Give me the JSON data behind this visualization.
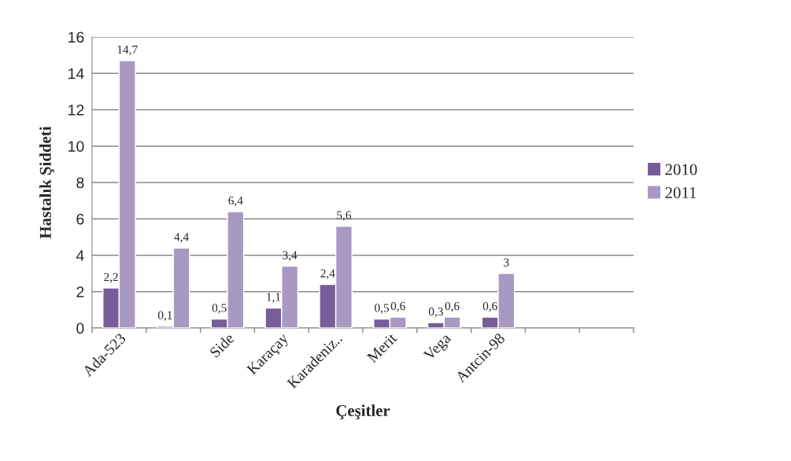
{
  "chart_data": {
    "type": "bar",
    "xlabel": "Çeşitler",
    "ylabel": "Hastalık Şiddeti",
    "categories": [
      "Ada-523",
      null,
      "Side",
      "Karaçay",
      "Karadeniz..",
      "Merit",
      "Vega",
      "Antcin-98",
      null,
      null
    ],
    "series": [
      {
        "name": "2010",
        "color": "#775d99",
        "values": [
          2.2,
          0.1,
          0.5,
          1.1,
          2.4,
          0.5,
          0.3,
          0.6,
          null,
          null
        ],
        "value_labels": [
          "2,2",
          "0,1",
          "0,5",
          "1,1",
          "2,4",
          "0,5",
          "0,3",
          "0,6",
          null,
          null
        ]
      },
      {
        "name": "2011",
        "color": "#a899c3",
        "values": [
          14.7,
          4.4,
          6.4,
          3.4,
          5.6,
          0.6,
          0.6,
          3,
          null,
          null
        ],
        "value_labels": [
          "14,7",
          "4,4",
          "6,4",
          "3,4",
          "5,6",
          "0,6",
          "0,6",
          "3",
          null,
          null
        ]
      }
    ],
    "ylim": [
      0,
      16
    ],
    "yticks": [
      0,
      2,
      4,
      6,
      8,
      10,
      12,
      14,
      16
    ],
    "grid": "y",
    "legend": "right"
  }
}
